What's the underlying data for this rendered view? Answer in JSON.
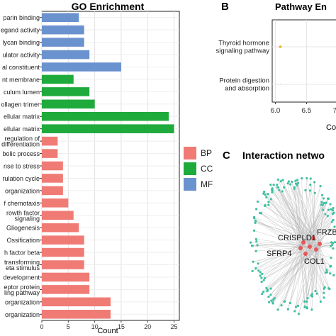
{
  "chart_data": [
    {
      "type": "bar",
      "orientation": "horizontal",
      "title": "GO Enrichment",
      "xlabel": "Count",
      "xlim": [
        0,
        26
      ],
      "x_ticks": [
        0,
        5,
        10,
        15,
        20,
        25
      ],
      "grid": true,
      "legend": {
        "placement": "right",
        "items": [
          {
            "label": "BP",
            "color": "#f07b75"
          },
          {
            "label": "CC",
            "color": "#1faa3c"
          },
          {
            "label": "MF",
            "color": "#6a92cf"
          }
        ]
      },
      "categories": [
        {
          "label": "parin binding",
          "value": 7,
          "group": "MF"
        },
        {
          "label": "egand activity",
          "value": 8,
          "group": "MF"
        },
        {
          "label": "lycan binding",
          "value": 8,
          "group": "MF"
        },
        {
          "label": "ulator activity",
          "value": 9,
          "group": "MF"
        },
        {
          "label": "al constituent",
          "value": 15,
          "group": "MF"
        },
        {
          "label": "nt membrane",
          "value": 6,
          "group": "CC"
        },
        {
          "label": "culum lumen",
          "value": 9,
          "group": "CC"
        },
        {
          "label": "ollagen trimer",
          "value": 10,
          "group": "CC"
        },
        {
          "label": "ellular matrix",
          "value": 24,
          "group": "CC"
        },
        {
          "label": "ellular matrix",
          "value": 25,
          "group": "CC"
        },
        {
          "label": "regulation of\ndifferentiation",
          "value": 3,
          "group": "BP"
        },
        {
          "label": "bolic process",
          "value": 3,
          "group": "BP"
        },
        {
          "label": "nse to stress",
          "value": 4,
          "group": "BP"
        },
        {
          "label": "rulation cycle",
          "value": 4,
          "group": "BP"
        },
        {
          "label": "organization",
          "value": 4,
          "group": "BP"
        },
        {
          "label": "f chemotaxis",
          "value": 5,
          "group": "BP"
        },
        {
          "label": "rowth factor\nsignaling",
          "value": 6,
          "group": "BP"
        },
        {
          "label": "Gliogenesis",
          "value": 7,
          "group": "BP"
        },
        {
          "label": "Ossification",
          "value": 8,
          "group": "BP"
        },
        {
          "label": "h factor beta",
          "value": 8,
          "group": "BP"
        },
        {
          "label": "transforming\neta stimulus",
          "value": 8,
          "group": "BP"
        },
        {
          "label": "development",
          "value": 9,
          "group": "BP"
        },
        {
          "label": "eptor protein\nling pathway",
          "value": 9,
          "group": "BP"
        },
        {
          "label": "organization",
          "value": 13,
          "group": "BP"
        },
        {
          "label": "organization",
          "value": 13,
          "group": "BP"
        }
      ]
    },
    {
      "type": "scatter",
      "panel_letter": "B",
      "title": "Pathway En",
      "xlabel": "Co",
      "x_ticks": [
        "6.0",
        "6.5",
        "7.0"
      ],
      "grid": true,
      "categories": [
        "Thyroid hormone\nsignaling pathway",
        "Protein digestion\nand absorption"
      ],
      "points": [
        {
          "category": "Thyroid hormone\nsignaling pathway",
          "x": 6.0,
          "color": "#e8b020"
        },
        {
          "category": "Protein digestion\nand absorption",
          "x": 6.0,
          "color": "#e8b020"
        }
      ]
    }
  ],
  "network_panel": {
    "panel_letter": "C",
    "title": "Interaction netwo",
    "node_labels": [
      "CRISPLD1",
      "FRZB",
      "SFRP4",
      "COL1"
    ],
    "hub_color": "#e85656",
    "leaf_color": "#3fbfa0",
    "edge_color": "#b8b8b8"
  }
}
